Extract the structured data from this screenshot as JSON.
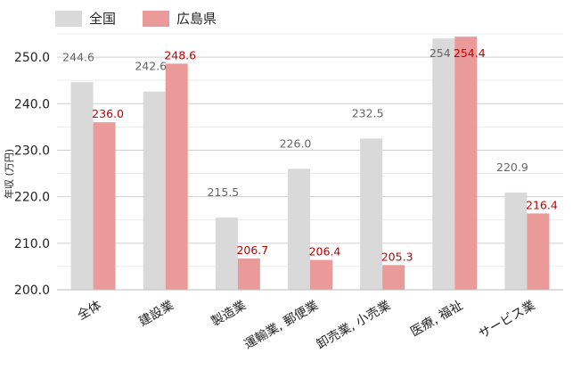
{
  "chart_data": {
    "type": "bar",
    "title": "",
    "xlabel": "",
    "ylabel": "年収 (万円)",
    "ylim": [
      200,
      255
    ],
    "yticks": [
      200,
      210,
      220,
      230,
      240,
      250
    ],
    "yticks_format": "0.0",
    "grid": true,
    "legend_position": "top-left",
    "categories": [
      "全体",
      "建設業",
      "製造業",
      "運輸業, 郵便業",
      "卸売業, 小売業",
      "医療, 福祉",
      "サービス業"
    ],
    "series": [
      {
        "name": "全国",
        "color": "#d9d9d9",
        "label_color": "#666666",
        "values": [
          244.6,
          242.6,
          215.5,
          226.0,
          232.5,
          254.0,
          220.9
        ],
        "labels": [
          "244.6",
          "242.6",
          "215.5",
          "226.0",
          "232.5",
          "254",
          "220.9"
        ]
      },
      {
        "name": "広島県",
        "color": "#eb9a9a",
        "label_color": "#c00000",
        "values": [
          236.0,
          248.6,
          206.7,
          206.4,
          205.3,
          254.4,
          216.4
        ],
        "labels": [
          "236.0",
          "248.6",
          "206.7",
          "206.4",
          "205.3",
          "254.4",
          "216.4"
        ]
      }
    ]
  }
}
